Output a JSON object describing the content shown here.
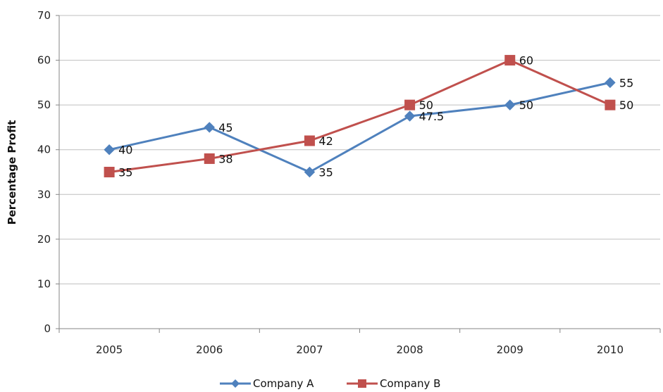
{
  "chart_data": {
    "type": "line",
    "title": "",
    "xlabel": "",
    "ylabel": "Percentage Profit",
    "categories": [
      "2005",
      "2006",
      "2007",
      "2008",
      "2009",
      "2010"
    ],
    "ylim": [
      0,
      70
    ],
    "yticks": [
      "0",
      "10",
      "20",
      "30",
      "40",
      "50",
      "60",
      "70"
    ],
    "grid": true,
    "legend_position": "bottom",
    "series": [
      {
        "name": "Company A",
        "values": [
          40,
          45,
          35,
          47.5,
          50,
          55
        ],
        "labels": [
          "40",
          "45",
          "35",
          "47.5",
          "50",
          "55"
        ],
        "color": "#4f81bd",
        "marker": "diamond"
      },
      {
        "name": "Company B",
        "values": [
          35,
          38,
          42,
          50,
          60,
          50
        ],
        "labels": [
          "35",
          "38",
          "42",
          "50",
          "60",
          "50"
        ],
        "color": "#c0504d",
        "marker": "square"
      }
    ]
  }
}
